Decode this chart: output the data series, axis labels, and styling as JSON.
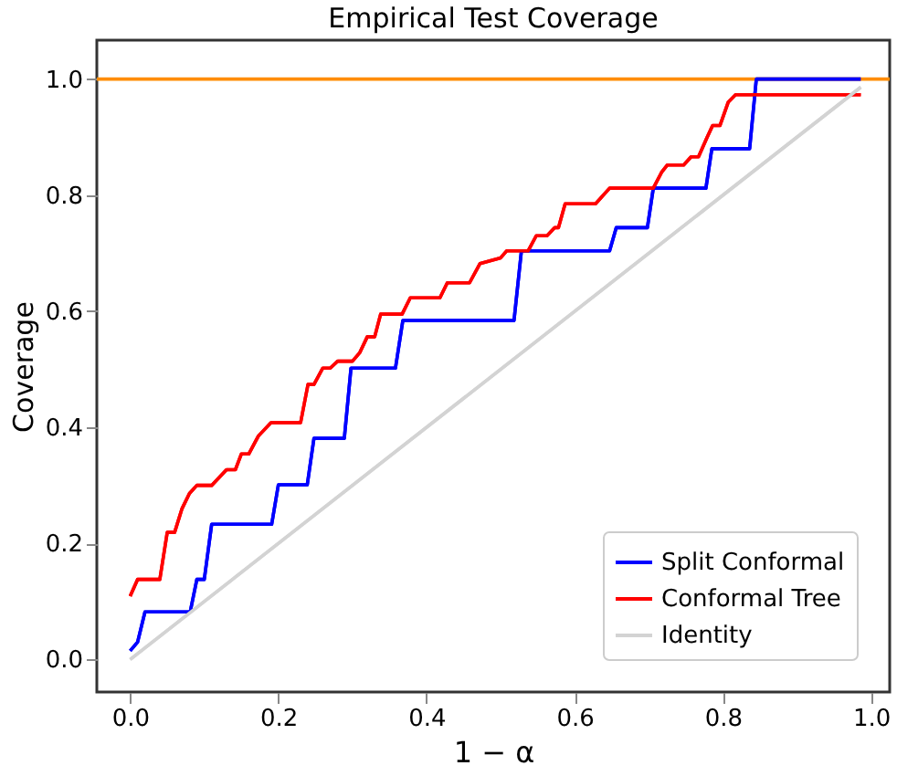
{
  "chart_data": {
    "type": "line",
    "title": "Empirical Test Coverage",
    "xlabel": "1 − α",
    "ylabel": "Coverage",
    "series": [
      {
        "name": "Split Conformal",
        "color": "#0000ff",
        "x": [
          0,
          0.01,
          0.02,
          0.081,
          0.09,
          0.1,
          0.11,
          0.191,
          0.2,
          0.239,
          0.248,
          0.289,
          0.298,
          0.358,
          0.368,
          0.518,
          0.528,
          0.647,
          0.656,
          0.698,
          0.706,
          0.777,
          0.785,
          0.836,
          0.845,
          0.986
        ],
        "values": [
          0.015,
          0.03,
          0.082,
          0.082,
          0.138,
          0.138,
          0.233,
          0.233,
          0.301,
          0.301,
          0.381,
          0.381,
          0.502,
          0.502,
          0.584,
          0.584,
          0.704,
          0.704,
          0.744,
          0.744,
          0.812,
          0.812,
          0.88,
          0.88,
          1.0,
          1.0
        ]
      },
      {
        "name": "Conformal Tree",
        "color": "#ff0000",
        "x": [
          0,
          0.01,
          0.04,
          0.05,
          0.06,
          0.07,
          0.08,
          0.09,
          0.11,
          0.13,
          0.142,
          0.15,
          0.16,
          0.173,
          0.19,
          0.23,
          0.24,
          0.248,
          0.26,
          0.27,
          0.28,
          0.3,
          0.31,
          0.32,
          0.33,
          0.338,
          0.367,
          0.378,
          0.418,
          0.428,
          0.458,
          0.472,
          0.5,
          0.508,
          0.537,
          0.548,
          0.5625,
          0.573,
          0.578,
          0.587,
          0.628,
          0.647,
          0.706,
          0.717,
          0.725,
          0.747,
          0.757,
          0.767,
          0.778,
          0.786,
          0.796,
          0.807,
          0.817,
          0.986
        ],
        "values": [
          0.109,
          0.138,
          0.138,
          0.219,
          0.219,
          0.26,
          0.286,
          0.3,
          0.3,
          0.327,
          0.327,
          0.354,
          0.354,
          0.385,
          0.408,
          0.408,
          0.474,
          0.474,
          0.502,
          0.502,
          0.514,
          0.514,
          0.529,
          0.556,
          0.556,
          0.595,
          0.595,
          0.623,
          0.623,
          0.649,
          0.649,
          0.682,
          0.692,
          0.704,
          0.704,
          0.73,
          0.73,
          0.744,
          0.744,
          0.785,
          0.785,
          0.812,
          0.812,
          0.839,
          0.852,
          0.852,
          0.866,
          0.866,
          0.898,
          0.92,
          0.92,
          0.96,
          0.973,
          0.973
        ]
      },
      {
        "name": "Identity",
        "color": "#d3d3d3",
        "x": [
          0,
          0.986
        ],
        "values": [
          0,
          0.986
        ]
      }
    ],
    "ref_lines": [
      {
        "axis": "y",
        "value": 1.0,
        "color": "#ff8c00"
      }
    ],
    "xlim": [
      -0.045,
      1.025
    ],
    "ylim": [
      -0.056,
      1.067
    ],
    "xticks": [
      {
        "value": 0,
        "label": "0.0"
      },
      {
        "value": 0.2,
        "label": "0.2"
      },
      {
        "value": 0.4,
        "label": "0.4"
      },
      {
        "value": 0.6,
        "label": "0.6"
      },
      {
        "value": 0.8,
        "label": "0.8"
      },
      {
        "value": 1,
        "label": "1.0"
      }
    ],
    "yticks": [
      {
        "value": 0,
        "label": "0.0"
      },
      {
        "value": 0.2,
        "label": "0.2"
      },
      {
        "value": 0.4,
        "label": "0.4"
      },
      {
        "value": 0.6,
        "label": "0.6"
      },
      {
        "value": 0.8,
        "label": "0.8"
      },
      {
        "value": 1,
        "label": "1.0"
      }
    ],
    "grid": false,
    "legend": "bottom right",
    "marker": "none",
    "line_style": "solid"
  }
}
